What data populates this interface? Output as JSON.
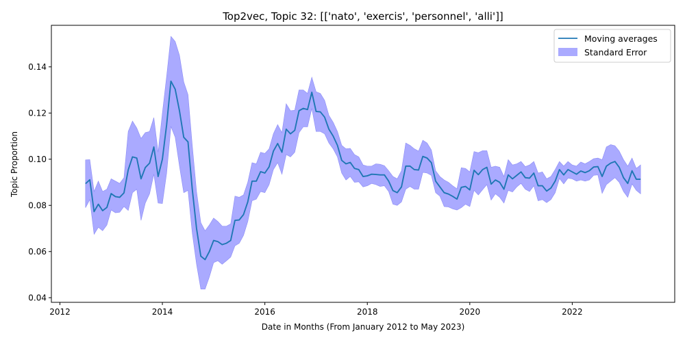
{
  "chart_data": {
    "type": "line",
    "title": "Top2vec, Topic 32: [['nato', 'exercis', 'personnel', 'alli']]",
    "xlabel": "Date in Months (From January 2012 to May 2023)",
    "ylabel": "Topic Proportion",
    "xlim": [
      "2011-11",
      "2024-01"
    ],
    "ylim": [
      0.038,
      0.158
    ],
    "x_ticks": [
      "2012",
      "2014",
      "2016",
      "2018",
      "2020",
      "2022"
    ],
    "y_ticks": [
      "0.04",
      "0.06",
      "0.08",
      "0.10",
      "0.12",
      "0.14"
    ],
    "legend_position": "top-right",
    "colors": {
      "line": "#1f77b4",
      "band": "#aaaaff",
      "band_edge": "#8a8af5"
    },
    "x": [
      "2012-07",
      "2012-08",
      "2012-09",
      "2012-10",
      "2012-11",
      "2012-12",
      "2013-01",
      "2013-02",
      "2013-03",
      "2013-04",
      "2013-05",
      "2013-06",
      "2013-07",
      "2013-08",
      "2013-09",
      "2013-10",
      "2013-11",
      "2013-12",
      "2014-01",
      "2014-02",
      "2014-03",
      "2014-04",
      "2014-05",
      "2014-06",
      "2014-07",
      "2014-08",
      "2014-09",
      "2014-10",
      "2014-11",
      "2014-12",
      "2015-01",
      "2015-02",
      "2015-03",
      "2015-04",
      "2015-05",
      "2015-06",
      "2015-07",
      "2015-08",
      "2015-09",
      "2015-10",
      "2015-11",
      "2015-12",
      "2016-01",
      "2016-02",
      "2016-03",
      "2016-04",
      "2016-05",
      "2016-06",
      "2016-07",
      "2016-08",
      "2016-09",
      "2016-10",
      "2016-11",
      "2016-12",
      "2017-01",
      "2017-02",
      "2017-03",
      "2017-04",
      "2017-05",
      "2017-06",
      "2017-07",
      "2017-08",
      "2017-09",
      "2017-10",
      "2017-11",
      "2017-12",
      "2018-01",
      "2018-02",
      "2018-03",
      "2018-04",
      "2018-05",
      "2018-06",
      "2018-07",
      "2018-08",
      "2018-09",
      "2018-10",
      "2018-11",
      "2018-12",
      "2019-01",
      "2019-02",
      "2019-03",
      "2019-04",
      "2019-05",
      "2019-06",
      "2019-07",
      "2019-08",
      "2019-09",
      "2019-10",
      "2019-11",
      "2019-12",
      "2020-01",
      "2020-02",
      "2020-03",
      "2020-04",
      "2020-05",
      "2020-06",
      "2020-07",
      "2020-08",
      "2020-09",
      "2020-10",
      "2020-11",
      "2020-12",
      "2021-01",
      "2021-02",
      "2021-03",
      "2021-04",
      "2021-05",
      "2021-06",
      "2021-07",
      "2021-08",
      "2021-09",
      "2021-10",
      "2021-11",
      "2021-12",
      "2022-01",
      "2022-02",
      "2022-03",
      "2022-04",
      "2022-05",
      "2022-06",
      "2022-07",
      "2022-08",
      "2022-09",
      "2022-10",
      "2022-11",
      "2022-12",
      "2023-01",
      "2023-02",
      "2023-03",
      "2023-04",
      "2023-05"
    ],
    "series": [
      {
        "name": "Moving averages",
        "values": [
          0.0894,
          0.0911,
          0.0773,
          0.0805,
          0.0777,
          0.0791,
          0.0851,
          0.0838,
          0.0835,
          0.0854,
          0.0954,
          0.101,
          0.1005,
          0.0915,
          0.0964,
          0.0983,
          0.1053,
          0.0925,
          0.1,
          0.115,
          0.1338,
          0.1303,
          0.121,
          0.1095,
          0.1075,
          0.087,
          0.07,
          0.058,
          0.0565,
          0.06,
          0.0648,
          0.0643,
          0.063,
          0.0636,
          0.0648,
          0.0735,
          0.0737,
          0.076,
          0.0815,
          0.0905,
          0.0905,
          0.0946,
          0.094,
          0.0967,
          0.1035,
          0.1068,
          0.103,
          0.113,
          0.111,
          0.1125,
          0.121,
          0.122,
          0.1215,
          0.129,
          0.1207,
          0.1205,
          0.1182,
          0.113,
          0.11,
          0.106,
          0.0995,
          0.098,
          0.0986,
          0.096,
          0.0955,
          0.0925,
          0.0928,
          0.0935,
          0.0934,
          0.0932,
          0.0932,
          0.0905,
          0.0864,
          0.0855,
          0.088,
          0.097,
          0.097,
          0.0955,
          0.0953,
          0.1012,
          0.1005,
          0.0985,
          0.0905,
          0.088,
          0.0855,
          0.0849,
          0.0839,
          0.0827,
          0.0878,
          0.0882,
          0.0867,
          0.0952,
          0.0933,
          0.0955,
          0.0965,
          0.0892,
          0.091,
          0.09,
          0.087,
          0.0932,
          0.0915,
          0.093,
          0.0945,
          0.092,
          0.0918,
          0.094,
          0.0885,
          0.0885,
          0.0862,
          0.0875,
          0.0905,
          0.0955,
          0.0932,
          0.0955,
          0.0945,
          0.0935,
          0.0949,
          0.0942,
          0.095,
          0.0966,
          0.0968,
          0.0925,
          0.097,
          0.0983,
          0.099,
          0.0965,
          0.092,
          0.0895,
          0.095,
          0.0913,
          0.0913
        ]
      }
    ],
    "band": {
      "name": "Standard Error",
      "upper": [
        0.0997,
        0.0998,
        0.086,
        0.0905,
        0.086,
        0.087,
        0.0915,
        0.0905,
        0.0895,
        0.092,
        0.112,
        0.1165,
        0.1135,
        0.109,
        0.1115,
        0.112,
        0.118,
        0.103,
        0.12,
        0.136,
        0.1532,
        0.151,
        0.145,
        0.1335,
        0.128,
        0.106,
        0.086,
        0.0725,
        0.069,
        0.0715,
        0.0745,
        0.073,
        0.071,
        0.071,
        0.072,
        0.084,
        0.0835,
        0.0845,
        0.09,
        0.0985,
        0.098,
        0.103,
        0.1025,
        0.1045,
        0.111,
        0.115,
        0.1115,
        0.124,
        0.121,
        0.1212,
        0.13,
        0.13,
        0.1285,
        0.1355,
        0.1292,
        0.1285,
        0.1255,
        0.119,
        0.116,
        0.112,
        0.106,
        0.1045,
        0.1047,
        0.102,
        0.101,
        0.0975,
        0.097,
        0.097,
        0.098,
        0.0978,
        0.0972,
        0.095,
        0.0925,
        0.0915,
        0.095,
        0.107,
        0.106,
        0.1045,
        0.1035,
        0.1082,
        0.107,
        0.104,
        0.095,
        0.0925,
        0.091,
        0.09,
        0.0885,
        0.0872,
        0.0963,
        0.096,
        0.0945,
        0.1033,
        0.1028,
        0.1037,
        0.1037,
        0.0965,
        0.097,
        0.0965,
        0.0925,
        0.0998,
        0.0975,
        0.098,
        0.099,
        0.0968,
        0.0975,
        0.099,
        0.094,
        0.0945,
        0.0915,
        0.0925,
        0.0955,
        0.099,
        0.097,
        0.099,
        0.0975,
        0.097,
        0.0988,
        0.098,
        0.099,
        0.1002,
        0.1005,
        0.0998,
        0.1053,
        0.1063,
        0.1058,
        0.1035,
        0.0998,
        0.097,
        0.1005,
        0.096,
        0.0975
      ],
      "lower": [
        0.079,
        0.0825,
        0.0675,
        0.0705,
        0.069,
        0.0715,
        0.078,
        0.0768,
        0.077,
        0.0795,
        0.0778,
        0.0855,
        0.087,
        0.0735,
        0.081,
        0.085,
        0.0935,
        0.081,
        0.0808,
        0.094,
        0.1142,
        0.1095,
        0.097,
        0.0855,
        0.0865,
        0.068,
        0.0545,
        0.0437,
        0.0437,
        0.049,
        0.0552,
        0.056,
        0.0545,
        0.056,
        0.0576,
        0.0625,
        0.0636,
        0.067,
        0.073,
        0.082,
        0.0827,
        0.086,
        0.0855,
        0.089,
        0.0955,
        0.0985,
        0.0935,
        0.102,
        0.101,
        0.103,
        0.1115,
        0.114,
        0.114,
        0.122,
        0.112,
        0.112,
        0.111,
        0.107,
        0.1045,
        0.101,
        0.094,
        0.091,
        0.0925,
        0.09,
        0.0902,
        0.088,
        0.0885,
        0.0895,
        0.089,
        0.0882,
        0.0885,
        0.086,
        0.0805,
        0.08,
        0.0815,
        0.087,
        0.0882,
        0.087,
        0.087,
        0.0943,
        0.094,
        0.093,
        0.0855,
        0.084,
        0.0795,
        0.0793,
        0.0785,
        0.078,
        0.079,
        0.0805,
        0.0795,
        0.0865,
        0.0845,
        0.0868,
        0.089,
        0.0823,
        0.085,
        0.0835,
        0.081,
        0.0865,
        0.0858,
        0.088,
        0.0895,
        0.087,
        0.086,
        0.0885,
        0.082,
        0.0825,
        0.0812,
        0.0825,
        0.0855,
        0.0917,
        0.0893,
        0.0918,
        0.0915,
        0.0905,
        0.091,
        0.0905,
        0.091,
        0.093,
        0.0932,
        0.0852,
        0.089,
        0.0905,
        0.092,
        0.09,
        0.086,
        0.0835,
        0.0893,
        0.0865,
        0.085
      ]
    }
  }
}
